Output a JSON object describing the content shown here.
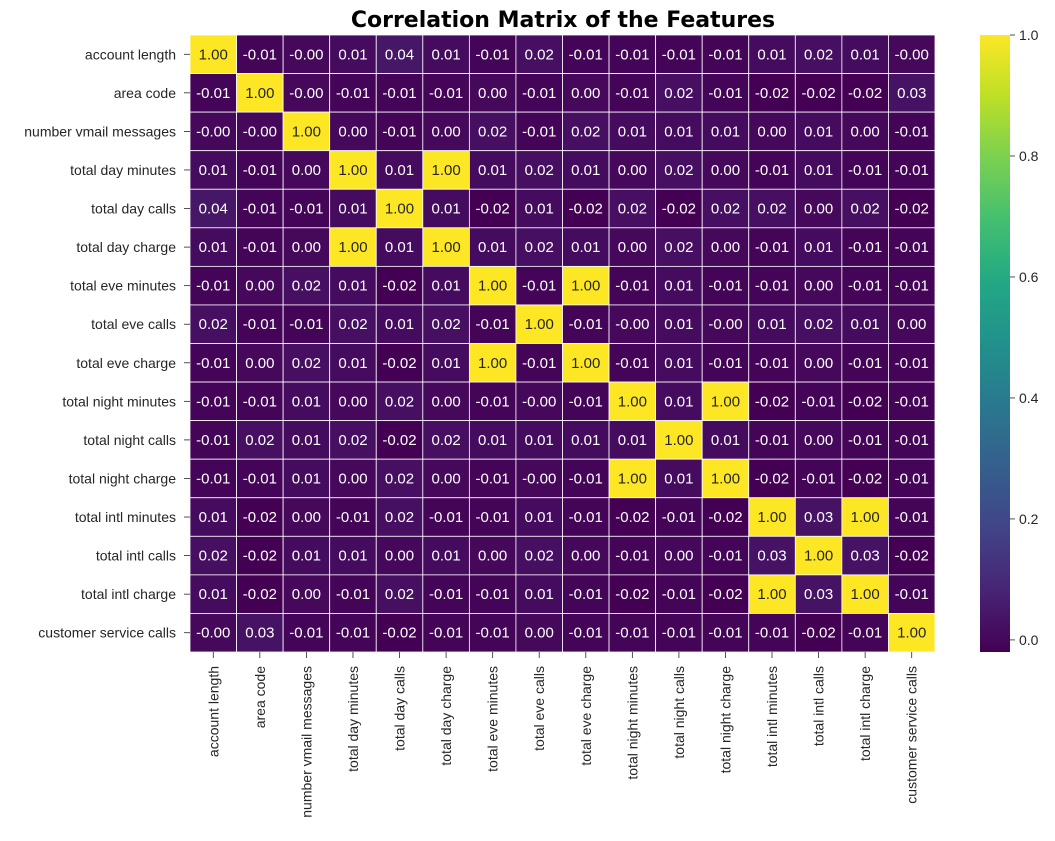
{
  "chart_data": {
    "type": "heatmap",
    "title": "Correlation Matrix of the Features",
    "colormap": "viridis",
    "color_range": [
      -0.02,
      1.0
    ],
    "colorbar_ticks": [
      "0.0",
      "0.2",
      "0.4",
      "0.6",
      "0.8",
      "1.0"
    ],
    "labels": [
      "account length",
      "area code",
      "number vmail messages",
      "total day minutes",
      "total day calls",
      "total day charge",
      "total eve minutes",
      "total eve calls",
      "total eve charge",
      "total night minutes",
      "total night calls",
      "total night charge",
      "total intl minutes",
      "total intl calls",
      "total intl charge",
      "customer service calls"
    ],
    "matrix": [
      [
        "1.00",
        "-0.01",
        "-0.00",
        "0.01",
        "0.04",
        "0.01",
        "-0.01",
        "0.02",
        "-0.01",
        "-0.01",
        "-0.01",
        "-0.01",
        "0.01",
        "0.02",
        "0.01",
        "-0.00"
      ],
      [
        "-0.01",
        "1.00",
        "-0.00",
        "-0.01",
        "-0.01",
        "-0.01",
        "0.00",
        "-0.01",
        "0.00",
        "-0.01",
        "0.02",
        "-0.01",
        "-0.02",
        "-0.02",
        "-0.02",
        "0.03"
      ],
      [
        "-0.00",
        "-0.00",
        "1.00",
        "0.00",
        "-0.01",
        "0.00",
        "0.02",
        "-0.01",
        "0.02",
        "0.01",
        "0.01",
        "0.01",
        "0.00",
        "0.01",
        "0.00",
        "-0.01"
      ],
      [
        "0.01",
        "-0.01",
        "0.00",
        "1.00",
        "0.01",
        "1.00",
        "0.01",
        "0.02",
        "0.01",
        "0.00",
        "0.02",
        "0.00",
        "-0.01",
        "0.01",
        "-0.01",
        "-0.01"
      ],
      [
        "0.04",
        "-0.01",
        "-0.01",
        "0.01",
        "1.00",
        "0.01",
        "-0.02",
        "0.01",
        "-0.02",
        "0.02",
        "-0.02",
        "0.02",
        "0.02",
        "0.00",
        "0.02",
        "-0.02"
      ],
      [
        "0.01",
        "-0.01",
        "0.00",
        "1.00",
        "0.01",
        "1.00",
        "0.01",
        "0.02",
        "0.01",
        "0.00",
        "0.02",
        "0.00",
        "-0.01",
        "0.01",
        "-0.01",
        "-0.01"
      ],
      [
        "-0.01",
        "0.00",
        "0.02",
        "0.01",
        "-0.02",
        "0.01",
        "1.00",
        "-0.01",
        "1.00",
        "-0.01",
        "0.01",
        "-0.01",
        "-0.01",
        "0.00",
        "-0.01",
        "-0.01"
      ],
      [
        "0.02",
        "-0.01",
        "-0.01",
        "0.02",
        "0.01",
        "0.02",
        "-0.01",
        "1.00",
        "-0.01",
        "-0.00",
        "0.01",
        "-0.00",
        "0.01",
        "0.02",
        "0.01",
        "0.00"
      ],
      [
        "-0.01",
        "0.00",
        "0.02",
        "0.01",
        "-0.02",
        "0.01",
        "1.00",
        "-0.01",
        "1.00",
        "-0.01",
        "0.01",
        "-0.01",
        "-0.01",
        "0.00",
        "-0.01",
        "-0.01"
      ],
      [
        "-0.01",
        "-0.01",
        "0.01",
        "0.00",
        "0.02",
        "0.00",
        "-0.01",
        "-0.00",
        "-0.01",
        "1.00",
        "0.01",
        "1.00",
        "-0.02",
        "-0.01",
        "-0.02",
        "-0.01"
      ],
      [
        "-0.01",
        "0.02",
        "0.01",
        "0.02",
        "-0.02",
        "0.02",
        "0.01",
        "0.01",
        "0.01",
        "0.01",
        "1.00",
        "0.01",
        "-0.01",
        "0.00",
        "-0.01",
        "-0.01"
      ],
      [
        "-0.01",
        "-0.01",
        "0.01",
        "0.00",
        "0.02",
        "0.00",
        "-0.01",
        "-0.00",
        "-0.01",
        "1.00",
        "0.01",
        "1.00",
        "-0.02",
        "-0.01",
        "-0.02",
        "-0.01"
      ],
      [
        "0.01",
        "-0.02",
        "0.00",
        "-0.01",
        "0.02",
        "-0.01",
        "-0.01",
        "0.01",
        "-0.01",
        "-0.02",
        "-0.01",
        "-0.02",
        "1.00",
        "0.03",
        "1.00",
        "-0.01"
      ],
      [
        "0.02",
        "-0.02",
        "0.01",
        "0.01",
        "0.00",
        "0.01",
        "0.00",
        "0.02",
        "0.00",
        "-0.01",
        "0.00",
        "-0.01",
        "0.03",
        "1.00",
        "0.03",
        "-0.02"
      ],
      [
        "0.01",
        "-0.02",
        "0.00",
        "-0.01",
        "0.02",
        "-0.01",
        "-0.01",
        "0.01",
        "-0.01",
        "-0.02",
        "-0.01",
        "-0.02",
        "1.00",
        "0.03",
        "1.00",
        "-0.01"
      ],
      [
        "-0.00",
        "0.03",
        "-0.01",
        "-0.01",
        "-0.02",
        "-0.01",
        "-0.01",
        "0.00",
        "-0.01",
        "-0.01",
        "-0.01",
        "-0.01",
        "-0.01",
        "-0.02",
        "-0.01",
        "1.00"
      ]
    ],
    "grid_line_color": "#ffffff"
  }
}
